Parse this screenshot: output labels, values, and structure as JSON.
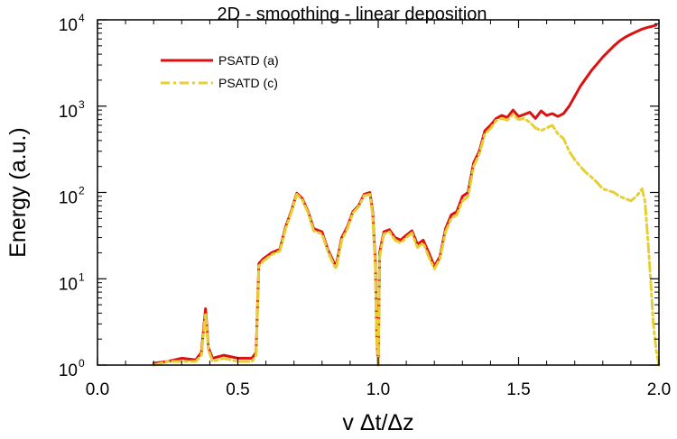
{
  "chart_data": {
    "type": "line",
    "title": "2D - smoothing - linear deposition",
    "xlabel": "v Δt/Δz",
    "ylabel": "Energy (a.u.)",
    "xlim": [
      0.0,
      2.0
    ],
    "ylim": [
      1,
      10000
    ],
    "yscale": "log",
    "xticks": [
      0.0,
      0.5,
      1.0,
      1.5,
      2.0
    ],
    "xtick_labels": [
      "0.0",
      "0.5",
      "1.0",
      "1.5",
      "2.0"
    ],
    "yticks": [
      {
        "value": 1,
        "base": "10",
        "exp": "0"
      },
      {
        "value": 10,
        "base": "10",
        "exp": "1"
      },
      {
        "value": 100,
        "base": "10",
        "exp": "2"
      },
      {
        "value": 1000,
        "base": "10",
        "exp": "3"
      },
      {
        "value": 10000,
        "base": "10",
        "exp": "4"
      }
    ],
    "legend_position": "top-left",
    "series": [
      {
        "name": "PSATD (a)",
        "color": "#dd1111",
        "style": "solid",
        "x": [
          0.2,
          0.25,
          0.3,
          0.35,
          0.37,
          0.385,
          0.395,
          0.41,
          0.45,
          0.5,
          0.55,
          0.565,
          0.575,
          0.59,
          0.62,
          0.65,
          0.67,
          0.69,
          0.71,
          0.73,
          0.75,
          0.77,
          0.8,
          0.82,
          0.84,
          0.85,
          0.87,
          0.89,
          0.91,
          0.93,
          0.95,
          0.97,
          0.98,
          0.99,
          0.995,
          1.0,
          1.005,
          1.02,
          1.04,
          1.06,
          1.08,
          1.1,
          1.12,
          1.14,
          1.16,
          1.18,
          1.2,
          1.22,
          1.24,
          1.26,
          1.28,
          1.3,
          1.32,
          1.34,
          1.36,
          1.38,
          1.4,
          1.42,
          1.44,
          1.46,
          1.48,
          1.5,
          1.52,
          1.54,
          1.56,
          1.58,
          1.6,
          1.62,
          1.64,
          1.66,
          1.68,
          1.7,
          1.72,
          1.74,
          1.76,
          1.78,
          1.8,
          1.82,
          1.84,
          1.86,
          1.88,
          1.9,
          1.92,
          1.94,
          1.96,
          1.98,
          1.99
        ],
        "y": [
          1.05,
          1.1,
          1.2,
          1.15,
          1.4,
          4.5,
          1.6,
          1.2,
          1.3,
          1.2,
          1.2,
          1.4,
          15,
          17,
          20,
          22,
          40,
          60,
          98,
          85,
          60,
          38,
          35,
          22,
          16,
          14,
          30,
          40,
          60,
          70,
          95,
          100,
          60,
          15,
          2,
          1,
          20,
          35,
          37,
          30,
          28,
          32,
          36,
          25,
          28,
          20,
          14,
          18,
          38,
          55,
          60,
          90,
          100,
          220,
          300,
          520,
          600,
          720,
          780,
          740,
          900,
          760,
          800,
          850,
          720,
          880,
          780,
          820,
          760,
          820,
          1000,
          1300,
          1700,
          2100,
          2600,
          3100,
          3700,
          4300,
          5000,
          5700,
          6300,
          6800,
          7300,
          7800,
          8200,
          8500,
          8700
        ]
      },
      {
        "name": "PSATD (c)",
        "color": "#e5cf33",
        "style": "dashdot",
        "x": [
          0.2,
          0.25,
          0.3,
          0.35,
          0.37,
          0.385,
          0.395,
          0.41,
          0.45,
          0.5,
          0.55,
          0.565,
          0.575,
          0.59,
          0.62,
          0.65,
          0.67,
          0.69,
          0.71,
          0.73,
          0.75,
          0.77,
          0.8,
          0.82,
          0.84,
          0.85,
          0.87,
          0.89,
          0.91,
          0.93,
          0.95,
          0.97,
          0.98,
          0.99,
          0.995,
          1.0,
          1.005,
          1.02,
          1.04,
          1.06,
          1.08,
          1.1,
          1.12,
          1.14,
          1.16,
          1.18,
          1.2,
          1.22,
          1.24,
          1.26,
          1.28,
          1.3,
          1.32,
          1.34,
          1.36,
          1.38,
          1.4,
          1.42,
          1.44,
          1.46,
          1.48,
          1.5,
          1.52,
          1.54,
          1.56,
          1.58,
          1.6,
          1.62,
          1.64,
          1.66,
          1.68,
          1.7,
          1.72,
          1.74,
          1.76,
          1.78,
          1.8,
          1.82,
          1.84,
          1.86,
          1.88,
          1.9,
          1.92,
          1.94,
          1.95,
          1.96,
          1.97,
          1.98,
          1.99,
          2.0
        ],
        "y": [
          1.0,
          1.1,
          1.1,
          1.1,
          1.3,
          4.0,
          1.5,
          1.1,
          1.2,
          1.1,
          1.1,
          1.3,
          14,
          16,
          19,
          21,
          38,
          58,
          95,
          82,
          58,
          36,
          33,
          21,
          15,
          13,
          28,
          38,
          58,
          68,
          92,
          95,
          55,
          13,
          2,
          1,
          18,
          33,
          35,
          28,
          26,
          30,
          34,
          23,
          26,
          18,
          13,
          17,
          35,
          50,
          55,
          80,
          90,
          200,
          280,
          480,
          550,
          680,
          720,
          690,
          800,
          700,
          720,
          650,
          560,
          520,
          560,
          600,
          480,
          420,
          300,
          240,
          200,
          170,
          150,
          130,
          110,
          105,
          100,
          90,
          85,
          80,
          90,
          110,
          80,
          30,
          10,
          3,
          1.5,
          1.0
        ]
      }
    ]
  }
}
